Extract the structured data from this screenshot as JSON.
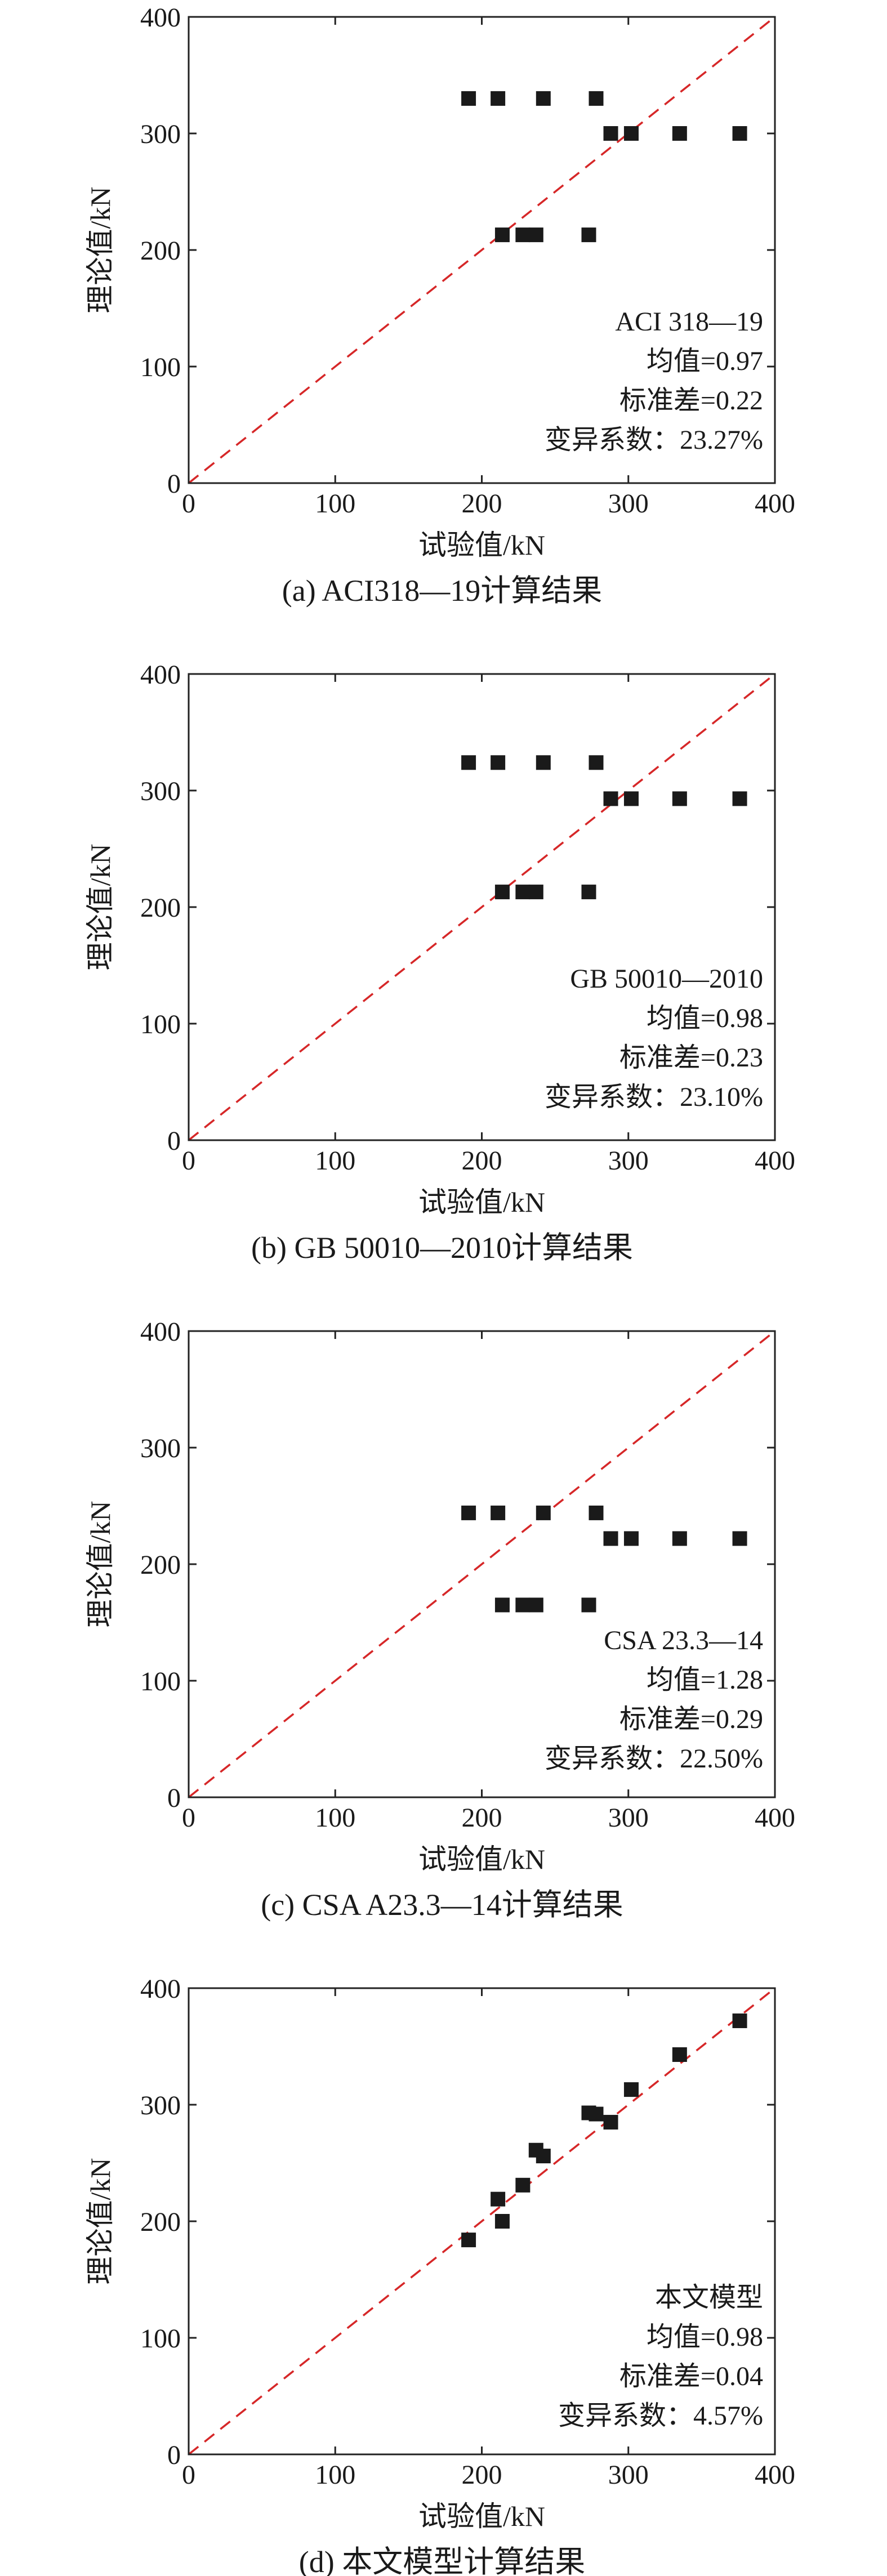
{
  "chart_data": [
    {
      "type": "scatter",
      "caption": "(a) ACI318—19计算结果",
      "xlabel": "试验值/kN",
      "ylabel": "理论值/kN",
      "xlim": [
        0,
        400
      ],
      "ylim": [
        0,
        400
      ],
      "xticks": [
        "0",
        "100",
        "200",
        "300",
        "400"
      ],
      "yticks": [
        "0",
        "100",
        "200",
        "300",
        "400"
      ],
      "reference_line": {
        "style": "dashed",
        "color": "#d62728",
        "from": [
          0,
          0
        ],
        "to": [
          400,
          400
        ]
      },
      "points": [
        {
          "x": 191,
          "y": 330
        },
        {
          "x": 211,
          "y": 330
        },
        {
          "x": 242,
          "y": 330
        },
        {
          "x": 278,
          "y": 330
        },
        {
          "x": 288,
          "y": 300
        },
        {
          "x": 302,
          "y": 300
        },
        {
          "x": 335,
          "y": 300
        },
        {
          "x": 376,
          "y": 300
        },
        {
          "x": 214,
          "y": 213
        },
        {
          "x": 228,
          "y": 213
        },
        {
          "x": 237,
          "y": 213
        },
        {
          "x": 273,
          "y": 213
        }
      ],
      "annotations": [
        "ACI 318—19",
        "均值=0.97",
        "标准差=0.22",
        "变异系数：23.27%"
      ]
    },
    {
      "type": "scatter",
      "caption": "(b) GB 50010—2010计算结果",
      "xlabel": "试验值/kN",
      "ylabel": "理论值/kN",
      "xlim": [
        0,
        400
      ],
      "ylim": [
        0,
        400
      ],
      "xticks": [
        "0",
        "100",
        "200",
        "300",
        "400"
      ],
      "yticks": [
        "0",
        "100",
        "200",
        "300",
        "400"
      ],
      "reference_line": {
        "style": "dashed",
        "color": "#d62728",
        "from": [
          0,
          0
        ],
        "to": [
          400,
          400
        ]
      },
      "points": [
        {
          "x": 191,
          "y": 324
        },
        {
          "x": 211,
          "y": 324
        },
        {
          "x": 242,
          "y": 324
        },
        {
          "x": 278,
          "y": 324
        },
        {
          "x": 288,
          "y": 293
        },
        {
          "x": 302,
          "y": 293
        },
        {
          "x": 335,
          "y": 293
        },
        {
          "x": 376,
          "y": 293
        },
        {
          "x": 214,
          "y": 213
        },
        {
          "x": 228,
          "y": 213
        },
        {
          "x": 237,
          "y": 213
        },
        {
          "x": 273,
          "y": 213
        }
      ],
      "annotations": [
        "GB 50010—2010",
        "均值=0.98",
        "标准差=0.23",
        "变异系数：23.10%"
      ]
    },
    {
      "type": "scatter",
      "caption": "(c) CSA A23.3—14计算结果",
      "xlabel": "试验值/kN",
      "ylabel": "理论值/kN",
      "xlim": [
        0,
        400
      ],
      "ylim": [
        0,
        400
      ],
      "xticks": [
        "0",
        "100",
        "200",
        "300",
        "400"
      ],
      "yticks": [
        "0",
        "100",
        "200",
        "300",
        "400"
      ],
      "reference_line": {
        "style": "dashed",
        "color": "#d62728",
        "from": [
          0,
          0
        ],
        "to": [
          400,
          400
        ]
      },
      "points": [
        {
          "x": 191,
          "y": 244
        },
        {
          "x": 211,
          "y": 244
        },
        {
          "x": 242,
          "y": 244
        },
        {
          "x": 278,
          "y": 244
        },
        {
          "x": 288,
          "y": 222
        },
        {
          "x": 302,
          "y": 222
        },
        {
          "x": 335,
          "y": 222
        },
        {
          "x": 376,
          "y": 222
        },
        {
          "x": 214,
          "y": 165
        },
        {
          "x": 228,
          "y": 165
        },
        {
          "x": 237,
          "y": 165
        },
        {
          "x": 273,
          "y": 165
        }
      ],
      "annotations": [
        "CSA 23.3—14",
        "均值=1.28",
        "标准差=0.29",
        "变异系数：22.50%"
      ]
    },
    {
      "type": "scatter",
      "caption": "(d) 本文模型计算结果",
      "xlabel": "试验值/kN",
      "ylabel": "理论值/kN",
      "xlim": [
        0,
        400
      ],
      "ylim": [
        0,
        400
      ],
      "xticks": [
        "0",
        "100",
        "200",
        "300",
        "400"
      ],
      "yticks": [
        "0",
        "100",
        "200",
        "300",
        "400"
      ],
      "reference_line": {
        "style": "dashed",
        "color": "#d62728",
        "from": [
          0,
          0
        ],
        "to": [
          400,
          400
        ]
      },
      "points": [
        {
          "x": 191,
          "y": 184
        },
        {
          "x": 211,
          "y": 219
        },
        {
          "x": 214,
          "y": 200
        },
        {
          "x": 228,
          "y": 231
        },
        {
          "x": 237,
          "y": 261
        },
        {
          "x": 242,
          "y": 256
        },
        {
          "x": 273,
          "y": 293
        },
        {
          "x": 278,
          "y": 292
        },
        {
          "x": 288,
          "y": 285
        },
        {
          "x": 302,
          "y": 313
        },
        {
          "x": 335,
          "y": 343
        },
        {
          "x": 376,
          "y": 372
        }
      ],
      "annotations": [
        "本文模型",
        "均值=0.98",
        "标准差=0.04",
        "变异系数：4.57%"
      ]
    }
  ]
}
